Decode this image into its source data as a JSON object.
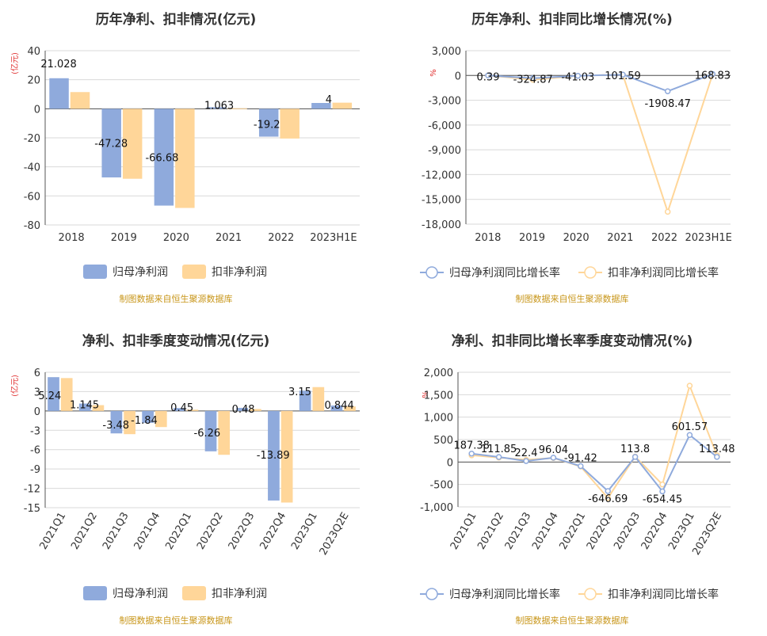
{
  "colors": {
    "blue": "#8faadc",
    "orange": "#ffd699",
    "axis": "#555555",
    "grid": "#d9d9d9",
    "source": "#c8961a",
    "unit": "#e03030"
  },
  "chart_data": [
    {
      "type": "bar",
      "title": "历年净利、扣非情况(亿元)",
      "unit_label": "(亿元)",
      "categories": [
        "2018",
        "2019",
        "2020",
        "2021",
        "2022",
        "2023H1E"
      ],
      "ylim": [
        -80,
        40
      ],
      "yticks": [
        40,
        20,
        0,
        -20,
        -40,
        -60,
        -80
      ],
      "series": [
        {
          "name": "归母净利润",
          "values": [
            21.028,
            -47.28,
            -66.68,
            1.063,
            -19.2,
            4
          ],
          "labels": [
            "21.028",
            "-47.28",
            "-66.68",
            "1.063",
            "-19.2",
            "4"
          ]
        },
        {
          "name": "扣非净利润",
          "values": [
            11.5,
            -48.2,
            -68.3,
            0.3,
            -20.5,
            4.2
          ]
        }
      ],
      "source": "制图数据来自恒生聚源数据库"
    },
    {
      "type": "line",
      "title": "历年净利、扣非同比增长情况(%)",
      "unit_label": "%",
      "categories": [
        "2018",
        "2019",
        "2020",
        "2021",
        "2022",
        "2023H1E"
      ],
      "ylim": [
        -18000,
        3000
      ],
      "yticks": [
        3000,
        0,
        -3000,
        -6000,
        -9000,
        -12000,
        -15000,
        -18000
      ],
      "ytick_labels": [
        "3,000",
        "0",
        "-3,000",
        "-6,000",
        "-9,000",
        "-12,000",
        "-15,000",
        "-18,000"
      ],
      "series": [
        {
          "name": "归母净利润同比增长率",
          "values": [
            0.39,
            -324.87,
            -41.03,
            101.59,
            -1908.47,
            168.83
          ],
          "labels": [
            "0.39",
            "-324.87",
            "-41.03",
            "101.59",
            "-1908.47",
            "168.83"
          ]
        },
        {
          "name": "扣非净利润同比增长率",
          "values": [
            10,
            -520,
            -42,
            100,
            -16500,
            120
          ]
        }
      ],
      "source": "制图数据来自恒生聚源数据库"
    },
    {
      "type": "bar",
      "title": "净利、扣非季度变动情况(亿元)",
      "unit_label": "(亿元)",
      "categories": [
        "2021Q1",
        "2021Q2",
        "2021Q3",
        "2021Q4",
        "2022Q1",
        "2022Q2",
        "2022Q3",
        "2022Q4",
        "2023Q1",
        "2023Q2E"
      ],
      "ylim": [
        -15,
        6
      ],
      "yticks": [
        6,
        3,
        0,
        -3,
        -6,
        -9,
        -12,
        -15
      ],
      "series": [
        {
          "name": "归母净利润",
          "values": [
            5.24,
            1.145,
            -3.48,
            -1.84,
            0.45,
            -6.26,
            0.48,
            -13.89,
            3.15,
            0.844
          ],
          "labels": [
            "5.24",
            "1.145",
            "-3.48",
            "-1.84",
            "0.45",
            "-6.26",
            "0.48",
            "-13.89",
            "3.15",
            "0.844"
          ]
        },
        {
          "name": "扣非净利润",
          "values": [
            5.1,
            0.9,
            -3.6,
            -2.5,
            0.2,
            -6.8,
            0.3,
            -14.2,
            3.7,
            0.7
          ]
        }
      ],
      "source": "制图数据来自恒生聚源数据库"
    },
    {
      "type": "line",
      "title": "净利、扣非同比增长率季度变动情况(%)",
      "unit_label": "%",
      "categories": [
        "2021Q1",
        "2021Q2",
        "2021Q3",
        "2021Q4",
        "2022Q1",
        "2022Q2",
        "2022Q3",
        "2022Q4",
        "2023Q1",
        "2023Q2E"
      ],
      "ylim": [
        -1000,
        2000
      ],
      "yticks": [
        2000,
        1500,
        1000,
        500,
        0,
        -500,
        -1000
      ],
      "ytick_labels": [
        "2,000",
        "1,500",
        "1,000",
        "500",
        "0",
        "-500",
        "-1,000"
      ],
      "series": [
        {
          "name": "归母净利润同比增长率",
          "values": [
            187.38,
            111.85,
            22.4,
            96.04,
            -91.42,
            -646.69,
            113.8,
            -654.45,
            601.57,
            113.48
          ],
          "labels": [
            "187.38",
            "111.85",
            "22.4",
            "96.04",
            "-91.42",
            "-646.69",
            "113.8",
            "-654.45",
            "601.57",
            "113.48"
          ]
        },
        {
          "name": "扣非净利润同比增长率",
          "values": [
            150,
            100,
            50,
            90,
            -100,
            -800,
            120,
            -500,
            1700,
            150
          ]
        }
      ],
      "source": "制图数据来自恒生聚源数据库"
    }
  ]
}
